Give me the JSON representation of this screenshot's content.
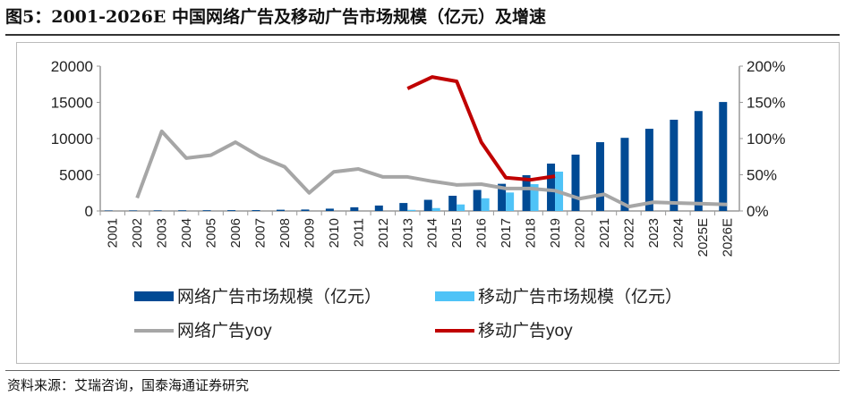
{
  "title": "图5：2001-2026E 中国网络广告及移动广告市场规模（亿元）及增速",
  "source": "资料来源：艾瑞咨询，国泰海通证券研究",
  "chart_data": {
    "type": "bar+line",
    "categories": [
      "2001",
      "2002",
      "2003",
      "2004",
      "2005",
      "2006",
      "2007",
      "2008",
      "2009",
      "2010",
      "2011",
      "2012",
      "2013",
      "2014",
      "2015",
      "2016",
      "2017",
      "2018",
      "2019",
      "2020",
      "2021",
      "2022",
      "2023",
      "2024",
      "2025E",
      "2026E"
    ],
    "left_axis": {
      "min": 0,
      "max": 20000,
      "ticks": [
        "0",
        "5000",
        "10000",
        "15000",
        "20000"
      ]
    },
    "right_axis": {
      "min": 0,
      "max": 200,
      "ticks": [
        "0%",
        "50%",
        "100%",
        "150%",
        "200%"
      ]
    },
    "series": [
      {
        "name": "网络广告市场规模（亿元）",
        "type": "bar",
        "axis": "left",
        "color": "#004a94",
        "values": [
          60,
          70,
          80,
          90,
          100,
          110,
          120,
          170,
          200,
          320,
          510,
          750,
          1100,
          1540,
          2100,
          2900,
          3750,
          4940,
          6540,
          7780,
          9500,
          10100,
          11350,
          12600,
          13800,
          15050
        ]
      },
      {
        "name": "移动广告市场规模（亿元）",
        "type": "bar",
        "axis": "left",
        "color": "#4fc3f7",
        "values": [
          null,
          null,
          null,
          null,
          null,
          null,
          null,
          null,
          null,
          null,
          null,
          null,
          150,
          400,
          900,
          1750,
          2550,
          3700,
          5430,
          null,
          null,
          null,
          null,
          null,
          null,
          null
        ]
      },
      {
        "name": "网络广告yoy",
        "type": "line",
        "axis": "right",
        "color": "#a6a6a6",
        "values": [
          null,
          18,
          110,
          73,
          77,
          95,
          75,
          61,
          25,
          54,
          58,
          47,
          47,
          41,
          36,
          37,
          31,
          31,
          28,
          17,
          23,
          6,
          12,
          11,
          10,
          9
        ]
      },
      {
        "name": "移动广告yoy",
        "type": "line",
        "axis": "right",
        "color": "#c00000",
        "values": [
          null,
          null,
          null,
          null,
          null,
          null,
          null,
          null,
          null,
          null,
          null,
          null,
          169,
          185,
          179,
          95,
          46,
          43,
          48,
          null,
          null,
          null,
          null,
          null,
          null,
          null
        ]
      }
    ],
    "legend": "bottom"
  }
}
